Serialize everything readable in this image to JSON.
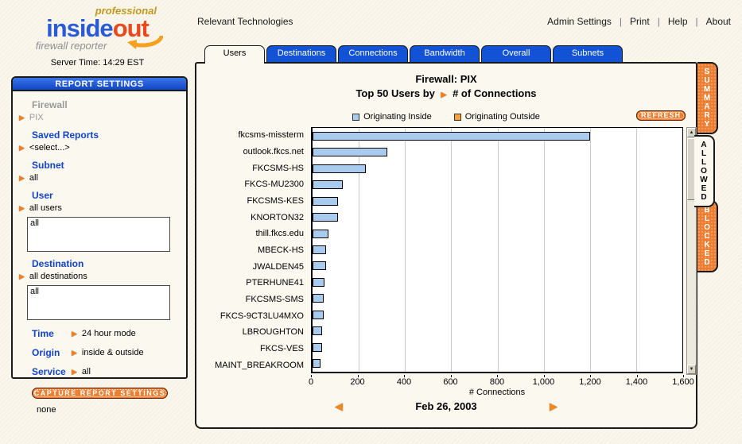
{
  "header": {
    "brand": "Relevant Technologies",
    "links": [
      "Admin Settings",
      "Print",
      "Help",
      "About"
    ],
    "logo": {
      "professional": "professional",
      "name_left": "inside",
      "name_right": "out",
      "tagline": "firewall reporter"
    },
    "server_time_label": "Server Time:",
    "server_time_value": "14:29 EST"
  },
  "sidebar": {
    "title": "REPORT SETTINGS",
    "fields": [
      {
        "label": "Firewall",
        "value": "PIX",
        "disabled": true
      },
      {
        "label": "Saved Reports",
        "value": "<select...>"
      },
      {
        "label": "Subnet",
        "value": "all"
      },
      {
        "label": "User",
        "value": "all users",
        "listbox": "all"
      },
      {
        "label": "Destination",
        "value": "all destinations",
        "listbox": "all"
      },
      {
        "label": "Time",
        "value": "24 hour mode",
        "inline": true
      },
      {
        "label": "Origin",
        "value": "inside & outside",
        "inline": true
      },
      {
        "label": "Service",
        "value": "all",
        "inline": true
      }
    ],
    "capture_button": "CAPTURE REPORT SETTINGS",
    "note": "none"
  },
  "tabs": [
    {
      "label": "Users",
      "active": true
    },
    {
      "label": "Destinations",
      "active": false
    },
    {
      "label": "Connections",
      "active": false
    },
    {
      "label": "Bandwidth",
      "active": false
    },
    {
      "label": "Overall",
      "active": false
    },
    {
      "label": "Subnets",
      "active": false
    }
  ],
  "side_tabs": [
    {
      "label": "SUMMARY",
      "active": false
    },
    {
      "label": "ALLOWED",
      "active": true
    },
    {
      "label": "BLOCKED",
      "active": false
    }
  ],
  "panel": {
    "refresh_button": "REFRESH",
    "date_nav": {
      "date": "Feb 26, 2003"
    }
  },
  "chart_data": {
    "type": "bar",
    "orientation": "horizontal",
    "title": "Firewall: PIX",
    "subtitle_prefix": "Top 50 Users by",
    "subtitle_metric": "# of Connections",
    "legend": [
      {
        "name": "Originating Inside",
        "color": "#a9cbee"
      },
      {
        "name": "Originating Outside",
        "color": "#f9a13c"
      }
    ],
    "categories": [
      "fkcsms-missterm",
      "outlook.fkcs.net",
      "FKCSMS-HS",
      "FKCS-MU2300",
      "FKCSMS-KES",
      "KNORTON32",
      "thill.fkcs.edu",
      "MBECK-HS",
      "JWALDEN45",
      "PTERHUNE41",
      "FKCSMS-SMS",
      "FKCS-9CT3LU4MXO",
      "LBROUGHTON",
      "FKCS-VES",
      "MAINT_BREAKROOM"
    ],
    "series": [
      {
        "name": "Originating Inside",
        "color": "#a9cbee",
        "values": [
          1200,
          325,
          230,
          130,
          110,
          110,
          68,
          60,
          58,
          50,
          47,
          47,
          40,
          40,
          35
        ]
      }
    ],
    "xlabel": "# Connections",
    "xlim": [
      0,
      1600
    ],
    "xticks": [
      0,
      200,
      400,
      600,
      800,
      1000,
      1200,
      1400,
      1600
    ],
    "xtick_labels": [
      "0",
      "200",
      "400",
      "600",
      "800",
      "1,000",
      "1,200",
      "1,400",
      "1,600"
    ],
    "grid": true,
    "legend_position": "top-center"
  },
  "colors": {
    "tab_blue": "#1253d6",
    "accent_orange": "#ed7d31",
    "bar_blue": "#a9cbee",
    "legend_orange": "#f9a13c"
  }
}
